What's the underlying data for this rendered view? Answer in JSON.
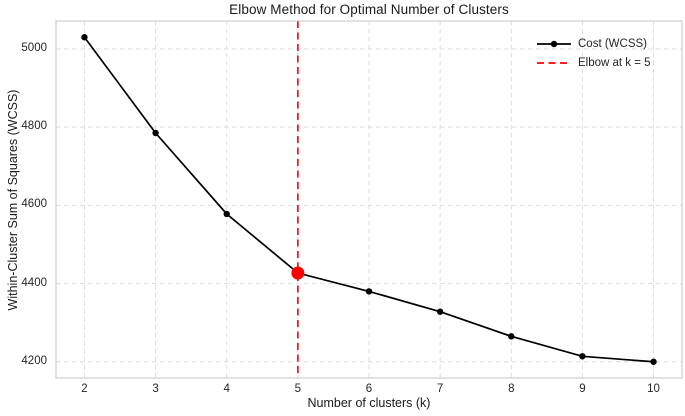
{
  "chart_data": {
    "type": "line",
    "title": "Elbow Method for Optimal Number of Clusters",
    "xlabel": "Number of clusters (k)",
    "ylabel": "Within-Cluster Sum of Squares (WCSS)",
    "x": [
      2,
      3,
      4,
      5,
      6,
      7,
      8,
      9,
      10
    ],
    "series": [
      {
        "name": "Cost (WCSS)",
        "values": [
          5030,
          4785,
          4578,
          4427,
          4380,
          4328,
          4265,
          4214,
          4200
        ],
        "color": "#000000",
        "marker": "circle"
      }
    ],
    "elbow": {
      "k": 5,
      "value": 4427,
      "color": "#ff0000",
      "label": "Elbow at k = 5"
    },
    "x_ticks": [
      2,
      3,
      4,
      5,
      6,
      7,
      8,
      9,
      10
    ],
    "y_ticks": [
      4200,
      4400,
      4600,
      4800,
      5000
    ],
    "xlim": [
      1.6,
      10.4
    ],
    "ylim": [
      4158.5,
      5071.5
    ],
    "grid": true,
    "legend": {
      "position": "upper right",
      "items": [
        {
          "label": "Cost (WCSS)",
          "type": "line-marker",
          "color": "#000000"
        },
        {
          "label": "Elbow at k = 5",
          "type": "dashed-line",
          "color": "#ff0000"
        }
      ]
    },
    "style": {
      "grid_color": "#dcdcdc",
      "spine_color": "#c4c4c4",
      "text_color": "#262626",
      "background": "#ffffff"
    }
  }
}
